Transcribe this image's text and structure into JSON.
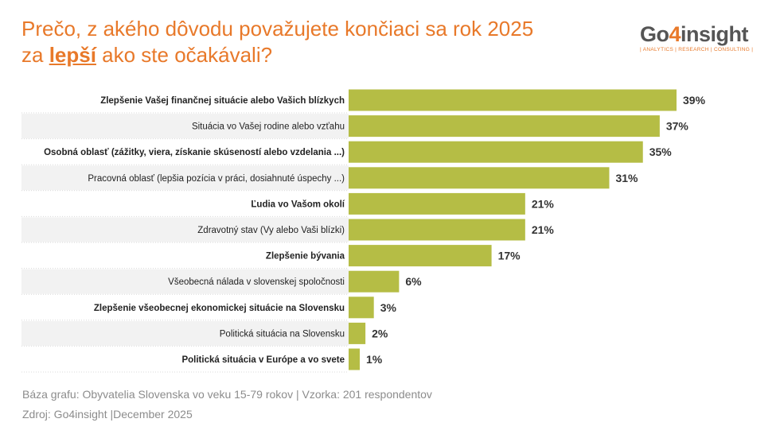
{
  "title": {
    "line1": "Prečo, z akého dôvodu považujete končiaci sa rok 2025",
    "line2_before": "za ",
    "line2_highlight": "lepší",
    "line2_after": " ako ste očakávali?"
  },
  "logo": {
    "word_before": "Go",
    "word_number": "4",
    "word_after": "insight",
    "tagline": "| ANALYTICS | RESEARCH | CONSULTING |"
  },
  "footer": {
    "base": "Báza grafu: Obyvatelia Slovenska vo veku 15-79 rokov  | Vzorka: 201 respondentov",
    "source": "Zdroj: Go4insight |December 2025"
  },
  "colors": {
    "bar": "#b5bd45",
    "title": "#e8792a",
    "stripe": "#f2f2f2"
  },
  "chart_data": {
    "type": "bar",
    "orientation": "horizontal",
    "categories": [
      "Zlepšenie Vašej finančnej situácie alebo Vašich blízkych",
      "Situácia vo Vašej rodine alebo vzťahu",
      "Osobná oblasť (zážitky, viera, získanie skúseností alebo vzdelania ...)",
      "Pracovná oblasť (lepšia pozícia v práci, dosiahnuté úspechy ...)",
      "Ľudia vo Vašom okolí",
      "Zdravotný stav (Vy alebo Vaši blízki)",
      "Zlepšenie bývania",
      "Všeobecná nálada v slovenskej spoločnosti",
      "Zlepšenie všeobecnej ekonomickej situácie na Slovensku",
      "Politická situácia na Slovensku",
      "Politická situácia v Európe a vo svete"
    ],
    "bold": [
      true,
      false,
      true,
      false,
      true,
      false,
      true,
      false,
      true,
      false,
      true
    ],
    "values": [
      39,
      37,
      35,
      31,
      21,
      21,
      17,
      6,
      3,
      2,
      1
    ],
    "labels": [
      "39%",
      "37%",
      "35%",
      "31%",
      "21%",
      "21%",
      "17%",
      "6%",
      "3%",
      "2%",
      "1%"
    ],
    "unit": "%",
    "xlim": [
      0,
      39
    ]
  }
}
